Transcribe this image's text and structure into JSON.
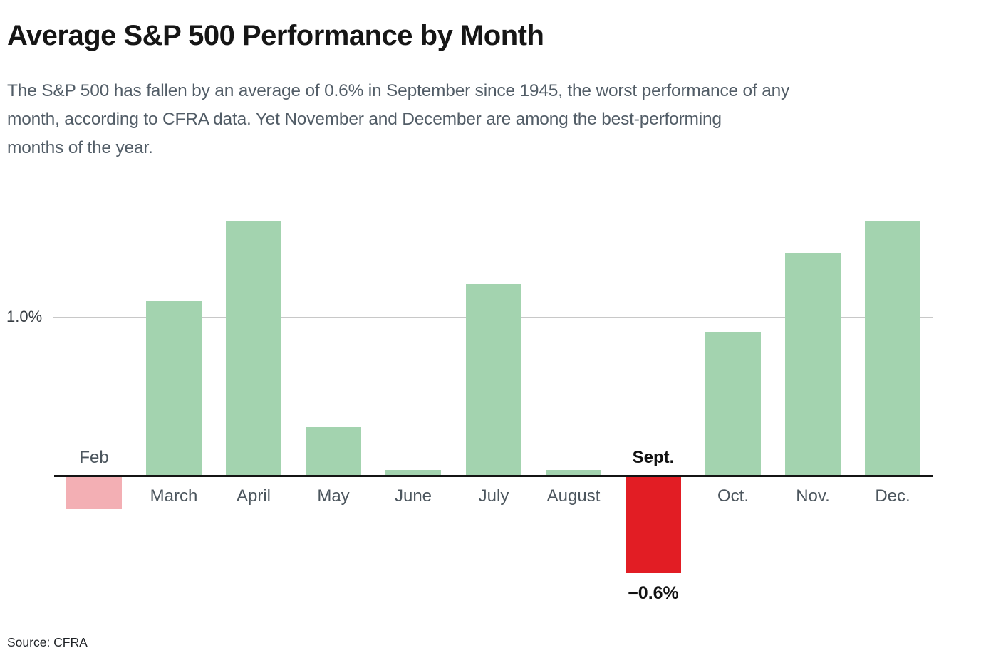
{
  "header": {
    "title": "Average S&P 500 Performance by Month",
    "subtitle": "The S&P 500 has fallen by an average of 0.6% in September since 1945, the worst performance of any\nmonth, according to CFRA data. Yet November and December are among the best-performing\nmonths of the year."
  },
  "footer": {
    "source": "Source: CFRA"
  },
  "chart_data": {
    "type": "bar",
    "title": "Average S&P 500 Performance by Month",
    "xlabel": "",
    "ylabel": "",
    "unit": "%",
    "ylim": [
      -0.8,
      1.8
    ],
    "grid": "single-horizontal-line",
    "legend": "none",
    "axis": {
      "gridline_value": 1.0,
      "gridline_label": "1.0%",
      "baseline_value": 0
    },
    "categories": [
      "Feb",
      "March",
      "April",
      "May",
      "June",
      "July",
      "August",
      "Sept.",
      "Oct.",
      "Nov.",
      "Dec."
    ],
    "values": [
      -0.2,
      1.1,
      1.6,
      0.3,
      0.03,
      1.2,
      0.03,
      -0.6,
      0.9,
      1.4,
      1.6
    ],
    "colors": {
      "positive": "#a3d3af",
      "negative_muted": "#f3afb4",
      "negative_highlight": "#e21d24"
    },
    "bars": [
      {
        "label": "Feb",
        "value": -0.2,
        "color": "#f3afb4",
        "label_side": "above",
        "emphasis": false
      },
      {
        "label": "March",
        "value": 1.1,
        "color": "#a3d3af",
        "label_side": "below",
        "emphasis": false
      },
      {
        "label": "April",
        "value": 1.6,
        "color": "#a3d3af",
        "label_side": "below",
        "emphasis": false
      },
      {
        "label": "May",
        "value": 0.3,
        "color": "#a3d3af",
        "label_side": "below",
        "emphasis": false
      },
      {
        "label": "June",
        "value": 0.03,
        "color": "#a3d3af",
        "label_side": "below",
        "emphasis": false
      },
      {
        "label": "July",
        "value": 1.2,
        "color": "#a3d3af",
        "label_side": "below",
        "emphasis": false
      },
      {
        "label": "August",
        "value": 0.03,
        "color": "#a3d3af",
        "label_side": "below",
        "emphasis": false
      },
      {
        "label": "Sept.",
        "value": -0.6,
        "color": "#e21d24",
        "label_side": "above",
        "emphasis": true
      },
      {
        "label": "Oct.",
        "value": 0.9,
        "color": "#a3d3af",
        "label_side": "below",
        "emphasis": false
      },
      {
        "label": "Nov.",
        "value": 1.4,
        "color": "#a3d3af",
        "label_side": "below",
        "emphasis": false
      },
      {
        "label": "Dec.",
        "value": 1.6,
        "color": "#a3d3af",
        "label_side": "below",
        "emphasis": false
      }
    ],
    "annotations": [
      {
        "bar": "Sept.",
        "text": "−0.6%"
      }
    ]
  }
}
